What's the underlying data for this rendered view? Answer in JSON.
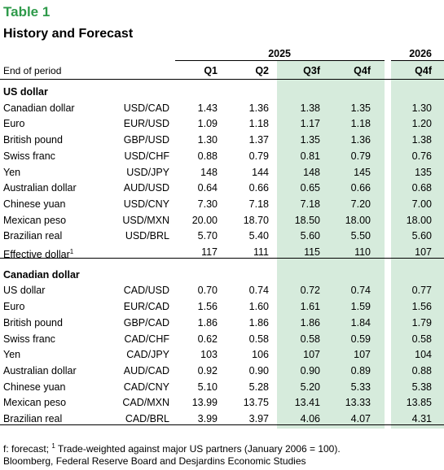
{
  "header": {
    "title": "Table 1",
    "subtitle": "History and Forecast"
  },
  "table": {
    "year_groups": [
      "2025",
      "2026"
    ],
    "period_label": "End of period",
    "columns": [
      "Q1",
      "Q2",
      "Q3f",
      "Q4f",
      "Q4f"
    ],
    "sections": [
      {
        "title": "US dollar",
        "rows": [
          {
            "label": "Canadian dollar",
            "pair": "USD/CAD",
            "values": [
              "1.43",
              "1.36",
              "1.38",
              "1.35",
              "1.30"
            ]
          },
          {
            "label": "Euro",
            "pair": "EUR/USD",
            "values": [
              "1.09",
              "1.18",
              "1.17",
              "1.18",
              "1.20"
            ]
          },
          {
            "label": "British pound",
            "pair": "GBP/USD",
            "values": [
              "1.30",
              "1.37",
              "1.35",
              "1.36",
              "1.38"
            ]
          },
          {
            "label": "Swiss franc",
            "pair": "USD/CHF",
            "values": [
              "0.88",
              "0.79",
              "0.81",
              "0.79",
              "0.76"
            ]
          },
          {
            "label": "Yen",
            "pair": "USD/JPY",
            "values": [
              "148",
              "144",
              "148",
              "145",
              "135"
            ]
          },
          {
            "label": "Australian dollar",
            "pair": "AUD/USD",
            "values": [
              "0.64",
              "0.66",
              "0.65",
              "0.66",
              "0.68"
            ]
          },
          {
            "label": "Chinese yuan",
            "pair": "USD/CNY",
            "values": [
              "7.30",
              "7.18",
              "7.18",
              "7.20",
              "7.00"
            ]
          },
          {
            "label": "Mexican peso",
            "pair": "USD/MXN",
            "values": [
              "20.00",
              "18.70",
              "18.50",
              "18.00",
              "18.00"
            ]
          },
          {
            "label": "Brazilian real",
            "pair": "USD/BRL",
            "values": [
              "5.70",
              "5.40",
              "5.60",
              "5.50",
              "5.60"
            ]
          },
          {
            "label": "Effective dollar",
            "note": "1",
            "pair": null,
            "values": [
              "117",
              "111",
              "115",
              "110",
              "107"
            ]
          }
        ]
      },
      {
        "title": "Canadian dollar",
        "rows": [
          {
            "label": "US dollar",
            "pair": "CAD/USD",
            "values": [
              "0.70",
              "0.74",
              "0.72",
              "0.74",
              "0.77"
            ]
          },
          {
            "label": "Euro",
            "pair": "EUR/CAD",
            "values": [
              "1.56",
              "1.60",
              "1.61",
              "1.59",
              "1.56"
            ]
          },
          {
            "label": "British pound",
            "pair": "GBP/CAD",
            "values": [
              "1.86",
              "1.86",
              "1.86",
              "1.84",
              "1.79"
            ]
          },
          {
            "label": "Swiss franc",
            "pair": "CAD/CHF",
            "values": [
              "0.62",
              "0.58",
              "0.58",
              "0.59",
              "0.58"
            ]
          },
          {
            "label": "Yen",
            "pair": "CAD/JPY",
            "values": [
              "103",
              "106",
              "107",
              "107",
              "104"
            ]
          },
          {
            "label": "Australian dollar",
            "pair": "AUD/CAD",
            "values": [
              "0.92",
              "0.90",
              "0.90",
              "0.89",
              "0.88"
            ]
          },
          {
            "label": "Chinese yuan",
            "pair": "CAD/CNY",
            "values": [
              "5.10",
              "5.28",
              "5.20",
              "5.33",
              "5.38"
            ]
          },
          {
            "label": "Mexican peso",
            "pair": "CAD/MXN",
            "values": [
              "13.99",
              "13.75",
              "13.41",
              "13.33",
              "13.85"
            ]
          },
          {
            "label": "Brazilian real",
            "pair": "CAD/BRL",
            "values": [
              "3.99",
              "3.97",
              "4.06",
              "4.07",
              "4.31"
            ]
          }
        ]
      }
    ]
  },
  "footer": {
    "note_parts": [
      "f: forecast; ",
      "1",
      " Trade-weighted against major US partners (January 2006 = 100)."
    ],
    "source": "Bloomberg, Federal Reserve Board and Desjardins Economic Studies"
  }
}
